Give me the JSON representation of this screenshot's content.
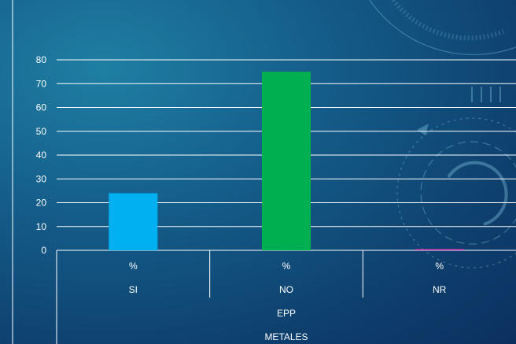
{
  "chart_data": {
    "type": "bar",
    "categories": [
      "SI",
      "NO",
      "NR"
    ],
    "category_unit": "%",
    "group_level_1": "EPP",
    "group_level_2": "METALES",
    "values": [
      24,
      75,
      0.5
    ],
    "colors": [
      "#00b0f0",
      "#00b050",
      "#e040c0"
    ],
    "ylim": [
      0,
      80
    ],
    "yticks": [
      0,
      10,
      20,
      30,
      40,
      50,
      60,
      70,
      80
    ],
    "grid": true,
    "legend": "none"
  }
}
